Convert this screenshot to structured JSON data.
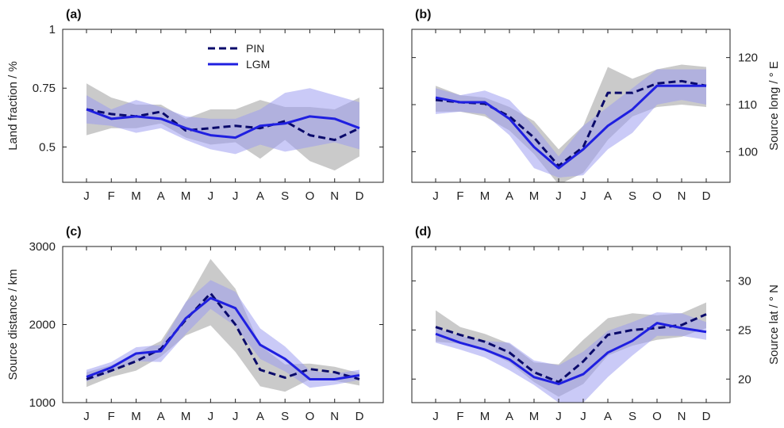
{
  "colors": {
    "pin": "#0a0a6b",
    "lgm": "#1f1fe0",
    "pin_band": "#a9a9a9",
    "lgm_band": "#9a9af0"
  },
  "legend": {
    "pin": "PIN",
    "lgm": "LGM"
  },
  "chart_data": [
    {
      "panel": "(a)",
      "type": "line",
      "categories": [
        "J",
        "F",
        "M",
        "A",
        "M",
        "J",
        "J",
        "A",
        "S",
        "O",
        "N",
        "D"
      ],
      "ylabel": "Land fraction / %",
      "yaxis_side": "left",
      "ylim": [
        0.35,
        1.0
      ],
      "yticks": [
        0.5,
        0.75,
        1
      ],
      "ytick_labels": [
        "0.5",
        "0.75",
        "1"
      ],
      "series": [
        {
          "name": "PIN",
          "style": "dashed",
          "values": [
            0.66,
            0.64,
            0.63,
            0.65,
            0.57,
            0.58,
            0.59,
            0.58,
            0.61,
            0.55,
            0.53,
            0.58
          ],
          "band_low": [
            0.55,
            0.58,
            0.58,
            0.6,
            0.54,
            0.51,
            0.52,
            0.45,
            0.53,
            0.44,
            0.4,
            0.46
          ],
          "band_high": [
            0.77,
            0.71,
            0.68,
            0.68,
            0.62,
            0.66,
            0.66,
            0.7,
            0.67,
            0.67,
            0.66,
            0.71
          ]
        },
        {
          "name": "LGM",
          "style": "solid",
          "values": [
            0.66,
            0.62,
            0.63,
            0.62,
            0.58,
            0.55,
            0.54,
            0.59,
            0.6,
            0.63,
            0.62,
            0.58
          ],
          "band_low": [
            0.6,
            0.59,
            0.56,
            0.58,
            0.53,
            0.49,
            0.47,
            0.51,
            0.48,
            0.5,
            0.52,
            0.49
          ],
          "band_high": [
            0.72,
            0.66,
            0.7,
            0.67,
            0.63,
            0.62,
            0.62,
            0.66,
            0.73,
            0.75,
            0.72,
            0.69
          ]
        }
      ]
    },
    {
      "panel": "(b)",
      "type": "line",
      "categories": [
        "J",
        "F",
        "M",
        "A",
        "M",
        "J",
        "J",
        "A",
        "S",
        "O",
        "N",
        "D"
      ],
      "ylabel": "Source long / ° E",
      "yaxis_side": "right",
      "ylim": [
        93.5,
        126
      ],
      "yticks": [
        100,
        110,
        120
      ],
      "ytick_labels": [
        "100",
        "110",
        "120"
      ],
      "series": [
        {
          "name": "PIN",
          "style": "dashed",
          "values": [
            111,
            110.5,
            110.2,
            107.5,
            103,
            97,
            101,
            112.5,
            112.5,
            114.5,
            115,
            114
          ],
          "band_low": [
            108.5,
            108.5,
            107.5,
            104.5,
            99.5,
            93,
            95.5,
            102.5,
            107.5,
            109.5,
            110,
            109.5
          ],
          "band_high": [
            114,
            112,
            111.5,
            109.5,
            106.5,
            100.5,
            105.5,
            118,
            115.5,
            117.5,
            118.5,
            118
          ]
        },
        {
          "name": "LGM",
          "style": "solid",
          "values": [
            111.5,
            110.5,
            110.5,
            107,
            101,
            96.5,
            100.5,
            105.5,
            109,
            114,
            114,
            114
          ],
          "band_low": [
            108,
            108.5,
            108,
            103.5,
            96.5,
            94.5,
            95,
            100.5,
            104,
            110,
            111,
            110
          ],
          "band_high": [
            113.5,
            112,
            113,
            111,
            105.5,
            99,
            105.5,
            109.5,
            113.5,
            117.5,
            117.5,
            117.5
          ]
        }
      ]
    },
    {
      "panel": "(c)",
      "type": "line",
      "categories": [
        "J",
        "F",
        "M",
        "A",
        "M",
        "J",
        "J",
        "A",
        "S",
        "O",
        "N",
        "D"
      ],
      "ylabel": "Source distance / km",
      "yaxis_side": "left",
      "ylim": [
        1000,
        3000
      ],
      "yticks": [
        1000,
        2000,
        3000
      ],
      "ytick_labels": [
        "1000",
        "2000",
        "3000"
      ],
      "series": [
        {
          "name": "PIN",
          "style": "dashed",
          "values": [
            1300,
            1410,
            1530,
            1690,
            2060,
            2400,
            2000,
            1420,
            1320,
            1430,
            1390,
            1300
          ],
          "band_low": [
            1200,
            1330,
            1410,
            1590,
            1860,
            1990,
            1650,
            1210,
            1140,
            1300,
            1280,
            1220
          ],
          "band_high": [
            1390,
            1480,
            1630,
            1790,
            2280,
            2840,
            2460,
            1730,
            1490,
            1500,
            1460,
            1380
          ]
        },
        {
          "name": "LGM",
          "style": "solid",
          "values": [
            1330,
            1450,
            1630,
            1660,
            2080,
            2340,
            2210,
            1740,
            1560,
            1300,
            1300,
            1350
          ],
          "band_low": [
            1270,
            1390,
            1530,
            1520,
            1880,
            2200,
            1980,
            1560,
            1400,
            1190,
            1230,
            1290
          ],
          "band_high": [
            1420,
            1520,
            1710,
            1740,
            2290,
            2570,
            2420,
            1950,
            1720,
            1410,
            1370,
            1420
          ]
        }
      ]
    },
    {
      "panel": "(d)",
      "type": "line",
      "categories": [
        "J",
        "F",
        "M",
        "A",
        "M",
        "J",
        "J",
        "A",
        "S",
        "O",
        "N",
        "D"
      ],
      "ylabel": "Source lat / ° N",
      "yaxis_side": "right",
      "ylim": [
        17.6,
        33.5
      ],
      "yticks": [
        20,
        25,
        30
      ],
      "ytick_labels": [
        "20",
        "25",
        "30"
      ],
      "series": [
        {
          "name": "PIN",
          "style": "dashed",
          "values": [
            25.3,
            24.5,
            23.8,
            22.7,
            20.7,
            19.7,
            21.8,
            24.5,
            25,
            25.2,
            25.5,
            26.6
          ],
          "band_low": [
            23.8,
            23.6,
            22.9,
            21.7,
            19.7,
            18.2,
            19.5,
            22.4,
            23.4,
            24,
            24.3,
            25.2
          ],
          "band_high": [
            27,
            25.3,
            24.6,
            23.6,
            21.7,
            21.5,
            24,
            26.2,
            26.7,
            26.5,
            26.7,
            27.8
          ]
        },
        {
          "name": "LGM",
          "style": "solid",
          "values": [
            24.6,
            23.7,
            23,
            22,
            20.2,
            19.5,
            20.5,
            22.7,
            23.9,
            25.7,
            25.2,
            24.8
          ],
          "band_low": [
            23.7,
            23,
            22.2,
            20.9,
            19.4,
            17.6,
            17.6,
            20.2,
            22.4,
            24.4,
            24.4,
            24
          ],
          "band_high": [
            25.2,
            24.4,
            23.9,
            23.7,
            21.9,
            21.4,
            22.8,
            24.9,
            25.8,
            26.8,
            26.7,
            25.8
          ]
        }
      ]
    }
  ]
}
